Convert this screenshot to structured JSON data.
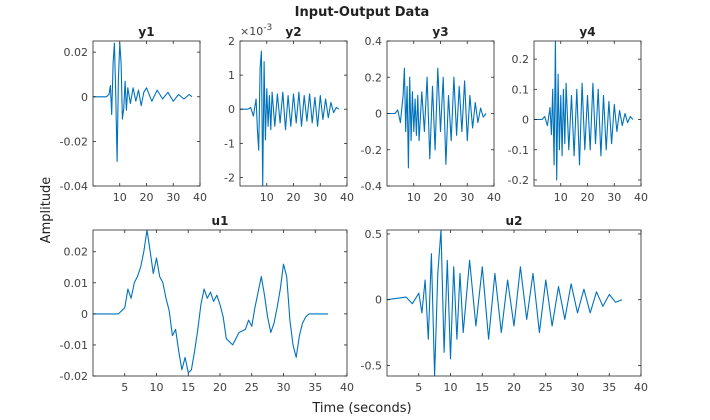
{
  "figure": {
    "title": "Input-Output Data",
    "xlabel": "Time (seconds)",
    "ylabel": "Amplitude",
    "line_color": "#0072BD"
  },
  "chart_data": [
    {
      "type": "line",
      "title": "y1",
      "xlim": [
        0,
        40
      ],
      "ylim": [
        -0.04,
        0.025
      ],
      "xticks": [
        10,
        20,
        30,
        40
      ],
      "xtick_labels": [
        "10",
        "20",
        "30",
        "40"
      ],
      "yticks": [
        -0.04,
        -0.02,
        0,
        0.02
      ],
      "ytick_labels": [
        "-0.04",
        "-0.02",
        "0",
        "0.02"
      ],
      "x": [
        0,
        5,
        6,
        6.5,
        7,
        7.5,
        8,
        8.5,
        9,
        9.5,
        10,
        10.5,
        11,
        11.5,
        12,
        12.5,
        13,
        14,
        15,
        16,
        17,
        18,
        19,
        20,
        22,
        24,
        26,
        28,
        30,
        32,
        34,
        36,
        37
      ],
      "y": [
        0,
        0,
        0.001,
        0.005,
        -0.008,
        0.015,
        0.024,
        0.002,
        -0.029,
        0.008,
        0.024,
        0.015,
        -0.01,
        -0.005,
        0.007,
        -0.006,
        0.004,
        -0.003,
        0.004,
        -0.002,
        0.003,
        -0.004,
        0.002,
        0.004,
        -0.002,
        0.003,
        -0.001,
        0.002,
        -0.002,
        0.001,
        -0.001,
        0.001,
        0
      ]
    },
    {
      "type": "line",
      "title": "y2",
      "exponent": "×10^-3",
      "xlim": [
        0,
        40
      ],
      "ylim": [
        -2.25,
        2
      ],
      "xticks": [
        10,
        20,
        30,
        40
      ],
      "xtick_labels": [
        "10",
        "20",
        "30",
        "40"
      ],
      "yticks": [
        -2,
        -1,
        0,
        1,
        2
      ],
      "ytick_labels": [
        "-2",
        "-1",
        "0",
        "1",
        "2"
      ],
      "x": [
        0,
        3,
        4,
        5,
        6,
        6.5,
        7,
        7.5,
        8,
        8.5,
        9,
        9.5,
        10,
        10.5,
        11,
        11.5,
        12,
        13,
        14,
        15,
        16,
        17,
        18,
        19,
        20,
        21,
        22,
        23,
        24,
        25,
        26,
        27,
        28,
        29,
        30,
        31,
        32,
        33,
        34,
        35,
        36,
        37
      ],
      "y": [
        0,
        0,
        0.05,
        -0.2,
        0.3,
        -0.6,
        -1.2,
        1.2,
        1.7,
        -2.25,
        1.4,
        -0.9,
        0.6,
        -0.5,
        0.4,
        -0.6,
        0.5,
        -0.5,
        0.45,
        -0.4,
        0.5,
        -0.6,
        0.4,
        -0.5,
        0.45,
        -0.4,
        0.5,
        -0.5,
        0.4,
        -0.35,
        0.45,
        -0.4,
        0.35,
        -0.5,
        0.4,
        -0.3,
        0.3,
        -0.25,
        0.2,
        -0.1,
        0.05,
        0
      ]
    },
    {
      "type": "line",
      "title": "y3",
      "xlim": [
        0,
        40
      ],
      "ylim": [
        -0.4,
        0.4
      ],
      "xticks": [
        10,
        20,
        30,
        40
      ],
      "xtick_labels": [
        "10",
        "20",
        "30",
        "40"
      ],
      "yticks": [
        -0.4,
        -0.2,
        0,
        0.2,
        0.4
      ],
      "ytick_labels": [
        "-0.4",
        "-0.2",
        "0",
        "0.2",
        "0.4"
      ],
      "x": [
        0,
        3,
        4,
        5,
        6,
        6.5,
        7,
        7.5,
        8,
        8.5,
        9,
        9.5,
        10,
        10.5,
        11,
        11.5,
        12,
        13,
        14,
        15,
        16,
        17,
        18,
        19,
        20,
        21,
        22,
        23,
        24,
        25,
        26,
        27,
        28,
        29,
        30,
        31,
        32,
        33,
        34,
        35,
        36,
        37
      ],
      "y": [
        0,
        0,
        0.02,
        -0.05,
        0.1,
        0.25,
        -0.1,
        0.15,
        -0.3,
        0.2,
        -0.15,
        0.12,
        -0.1,
        0.08,
        -0.12,
        0.1,
        -0.15,
        0.12,
        -0.1,
        0.2,
        -0.25,
        0.15,
        -0.2,
        0.25,
        -0.1,
        0.2,
        -0.28,
        0.1,
        -0.15,
        0.2,
        -0.12,
        0.15,
        -0.1,
        0.18,
        -0.15,
        0.1,
        -0.08,
        0.06,
        -0.05,
        0.03,
        -0.02,
        0
      ]
    },
    {
      "type": "line",
      "title": "y4",
      "xlim": [
        0,
        40
      ],
      "ylim": [
        -0.22,
        0.26
      ],
      "xticks": [
        10,
        20,
        30,
        40
      ],
      "xtick_labels": [
        "10",
        "20",
        "30",
        "40"
      ],
      "yticks": [
        -0.2,
        -0.1,
        0,
        0.1,
        0.2
      ],
      "ytick_labels": [
        "-0.2",
        "-0.1",
        "0",
        "0.1",
        "0.2"
      ],
      "x": [
        0,
        3,
        4,
        5,
        6,
        6.5,
        7,
        7.5,
        8,
        8.5,
        9,
        9.5,
        10,
        10.5,
        11,
        11.5,
        12,
        13,
        14,
        15,
        16,
        17,
        18,
        19,
        20,
        21,
        22,
        23,
        24,
        25,
        26,
        27,
        28,
        29,
        30,
        31,
        32,
        33,
        34,
        35,
        36,
        37
      ],
      "y": [
        0,
        0,
        0.01,
        -0.02,
        0.04,
        -0.05,
        0.1,
        -0.15,
        0.26,
        -0.2,
        0.15,
        -0.1,
        0.08,
        -0.12,
        0.1,
        -0.08,
        0.12,
        -0.1,
        0.08,
        -0.12,
        0.1,
        -0.15,
        0.12,
        -0.1,
        0.08,
        -0.1,
        0.12,
        -0.08,
        0.1,
        -0.12,
        0.08,
        -0.1,
        0.06,
        -0.08,
        0.05,
        -0.04,
        0.03,
        -0.02,
        0.02,
        -0.01,
        0.01,
        0
      ]
    },
    {
      "type": "line",
      "title": "u1",
      "xlim": [
        0,
        40
      ],
      "ylim": [
        -0.02,
        0.027
      ],
      "xticks": [
        5,
        10,
        15,
        20,
        25,
        30,
        35,
        40
      ],
      "xtick_labels": [
        "5",
        "10",
        "15",
        "20",
        "25",
        "30",
        "35",
        "40"
      ],
      "yticks": [
        -0.02,
        -0.01,
        0,
        0.01,
        0.02
      ],
      "ytick_labels": [
        "-0.02",
        "-0.01",
        "0",
        "0.01",
        "0.02"
      ],
      "x": [
        0,
        4,
        5,
        5.5,
        6,
        6.5,
        7,
        7.5,
        8,
        8.5,
        9,
        9.5,
        10,
        10.5,
        11,
        11.5,
        12,
        12.5,
        13,
        13.5,
        14,
        14.5,
        15,
        15.5,
        16,
        16.5,
        17,
        17.5,
        18,
        18.5,
        19,
        19.5,
        20,
        20.5,
        21,
        22,
        23,
        24,
        24.5,
        25,
        25.5,
        26,
        26.5,
        27,
        27.5,
        28,
        28.5,
        29,
        29.5,
        30,
        30.5,
        31,
        31.5,
        32,
        32.5,
        33,
        33.5,
        34,
        35,
        36,
        37
      ],
      "y": [
        0,
        0,
        0.002,
        0.008,
        0.005,
        0.01,
        0.012,
        0.015,
        0.02,
        0.027,
        0.02,
        0.013,
        0.018,
        0.012,
        0.01,
        0.005,
        0.001,
        -0.007,
        -0.005,
        -0.012,
        -0.018,
        -0.014,
        -0.019,
        -0.018,
        -0.012,
        -0.005,
        0.003,
        0.008,
        0.005,
        0.007,
        0.004,
        0.006,
        0.003,
        -0.001,
        -0.008,
        -0.01,
        -0.006,
        -0.005,
        -0.002,
        -0.004,
        0.002,
        0.007,
        0.012,
        0.006,
        -0.001,
        -0.006,
        -0.003,
        0.002,
        0.008,
        0.016,
        0.012,
        -0.002,
        -0.01,
        -0.014,
        -0.007,
        -0.003,
        -0.001,
        0,
        0,
        0,
        0
      ]
    },
    {
      "type": "line",
      "title": "u2",
      "xlim": [
        0,
        40
      ],
      "ylim": [
        -0.58,
        0.53
      ],
      "xticks": [
        5,
        10,
        15,
        20,
        25,
        30,
        35,
        40
      ],
      "xtick_labels": [
        "5",
        "10",
        "15",
        "20",
        "25",
        "30",
        "35",
        "40"
      ],
      "yticks": [
        -0.5,
        0,
        0.5
      ],
      "ytick_labels": [
        "-0.5",
        "0",
        "0.5"
      ],
      "x": [
        0,
        3,
        4,
        5,
        5.5,
        6,
        6.5,
        7,
        7.5,
        8,
        8.5,
        9,
        9.5,
        10,
        10.5,
        11,
        11.5,
        12,
        13,
        14,
        15,
        16,
        17,
        18,
        19,
        20,
        21,
        22,
        23,
        24,
        25,
        26,
        27,
        28,
        29,
        30,
        31,
        32,
        33,
        34,
        35,
        36,
        37
      ],
      "y": [
        0,
        0.02,
        -0.03,
        0.05,
        -0.1,
        0.15,
        -0.3,
        0.35,
        -0.58,
        0.2,
        0.53,
        -0.4,
        0.3,
        -0.45,
        0.25,
        -0.3,
        0.2,
        -0.25,
        0.3,
        -0.2,
        0.25,
        -0.3,
        0.2,
        -0.25,
        0.15,
        -0.2,
        0.25,
        -0.15,
        0.2,
        -0.25,
        0.15,
        -0.2,
        0.1,
        -0.15,
        0.12,
        -0.1,
        0.08,
        -0.1,
        0.06,
        -0.05,
        0.04,
        -0.02,
        0
      ]
    }
  ]
}
